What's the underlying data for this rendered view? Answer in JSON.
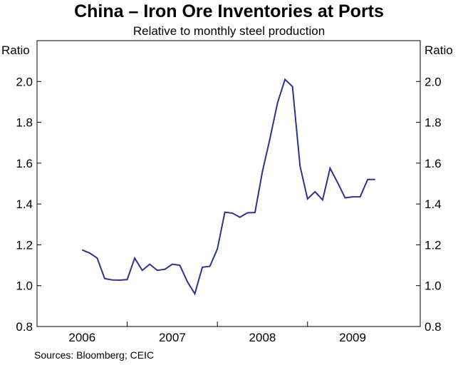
{
  "chart_data": {
    "type": "line",
    "title": "China – Iron Ore Inventories at Ports",
    "subtitle": "Relative to monthly steel production",
    "ylabel_left": "Ratio",
    "ylabel_right": "Ratio",
    "ylim": [
      0.8,
      2.2
    ],
    "yticks": [
      "0.8",
      "1.0",
      "1.2",
      "1.4",
      "1.6",
      "1.8",
      "2.0"
    ],
    "xlim": [
      2005.5,
      2009.75
    ],
    "xtick_labels": [
      {
        "label": "2006",
        "center": 2006.0
      },
      {
        "label": "2007",
        "center": 2007.0
      },
      {
        "label": "2008",
        "center": 2008.0
      },
      {
        "label": "2009",
        "center": 2009.0
      }
    ],
    "year_boundaries": [
      2006.5,
      2007.5,
      2008.5
    ],
    "source": "Sources: Bloomberg; CEIC",
    "color": "#2e3192",
    "series": [
      {
        "x": [
          2006.0,
          2006.083,
          2006.167,
          2006.25,
          2006.333,
          2006.417,
          2006.5,
          2006.583,
          2006.667,
          2006.75,
          2006.833,
          2006.917,
          2007.0,
          2007.083,
          2007.167,
          2007.25,
          2007.333,
          2007.417,
          2007.5,
          2007.583,
          2007.667,
          2007.75,
          2007.833,
          2007.917,
          2008.0,
          2008.083,
          2008.167,
          2008.25,
          2008.333,
          2008.417,
          2008.5,
          2008.583,
          2008.667,
          2008.75,
          2008.833,
          2008.917,
          2009.0,
          2009.083,
          2009.167,
          2009.25
        ],
        "values": [
          1.175,
          1.16,
          1.135,
          1.035,
          1.028,
          1.027,
          1.03,
          1.135,
          1.075,
          1.105,
          1.075,
          1.08,
          1.105,
          1.1,
          1.02,
          0.96,
          1.09,
          1.095,
          1.18,
          1.36,
          1.355,
          1.335,
          1.357,
          1.358,
          1.56,
          1.72,
          1.895,
          2.01,
          1.975,
          1.585,
          1.425,
          1.46,
          1.42,
          1.575,
          1.505,
          1.43,
          1.435,
          1.435,
          1.52,
          1.52
        ]
      }
    ]
  }
}
